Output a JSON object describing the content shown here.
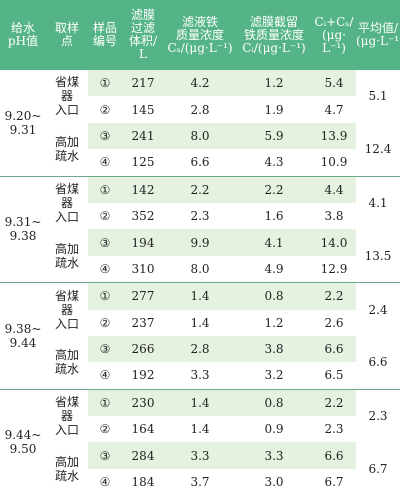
{
  "header": [
    [
      "给水",
      "pH值"
    ],
    [
      "取样",
      "点"
    ],
    [
      "样品",
      "编号"
    ],
    [
      "滤膜",
      "过滤",
      "体积/",
      "L"
    ],
    [
      "滤液铁",
      "质量浓度",
      "Cₛ/(μg·L⁻¹)"
    ],
    [
      "滤膜截留",
      "铁质量浓度",
      "Cᵢ/(μg·L⁻¹)"
    ],
    [
      "Cᵢ+Cₛ/",
      "(μg·",
      "L⁻¹)"
    ],
    [
      "平均值/",
      "(μg·L⁻¹)"
    ]
  ],
  "groups": [
    {
      "ph": [
        "9.20~",
        "9.31"
      ],
      "points": [
        {
          "name": [
            "省煤",
            "器",
            "入口"
          ],
          "rows": [
            [
              "①",
              "217",
              "4.2",
              "1.2",
              "5.4"
            ],
            [
              "②",
              "145",
              "2.8",
              "1.9",
              "4.7"
            ]
          ],
          "avg": "5.1"
        },
        {
          "name": [
            "高加",
            "疏水"
          ],
          "rows": [
            [
              "③",
              "241",
              "8.0",
              "5.9",
              "13.9"
            ],
            [
              "④",
              "125",
              "6.6",
              "4.3",
              "10.9"
            ]
          ],
          "avg": "12.4"
        }
      ]
    },
    {
      "ph": [
        "9.31~",
        "9.38"
      ],
      "points": [
        {
          "name": [
            "省煤",
            "器",
            "入口"
          ],
          "rows": [
            [
              "①",
              "142",
              "2.2",
              "2.2",
              "4.4"
            ],
            [
              "②",
              "352",
              "2.3",
              "1.6",
              "3.8"
            ]
          ],
          "avg": "4.1"
        },
        {
          "name": [
            "高加",
            "疏水"
          ],
          "rows": [
            [
              "③",
              "194",
              "9.9",
              "4.1",
              "14.0"
            ],
            [
              "④",
              "310",
              "8.0",
              "4.9",
              "12.9"
            ]
          ],
          "avg": "13.5"
        }
      ]
    },
    {
      "ph": [
        "9.38~",
        "9.44"
      ],
      "points": [
        {
          "name": [
            "省煤",
            "器",
            "入口"
          ],
          "rows": [
            [
              "①",
              "277",
              "1.4",
              "0.8",
              "2.2"
            ],
            [
              "②",
              "237",
              "1.4",
              "1.2",
              "2.6"
            ]
          ],
          "avg": "2.4"
        },
        {
          "name": [
            "高加",
            "疏水"
          ],
          "rows": [
            [
              "③",
              "266",
              "2.8",
              "3.8",
              "6.6"
            ],
            [
              "④",
              "192",
              "3.3",
              "3.2",
              "6.5"
            ]
          ],
          "avg": "6.6"
        }
      ]
    },
    {
      "ph": [
        "9.44~",
        "9.50"
      ],
      "points": [
        {
          "name": [
            "省煤",
            "器",
            "入口"
          ],
          "rows": [
            [
              "①",
              "230",
              "1.4",
              "0.8",
              "2.2"
            ],
            [
              "②",
              "164",
              "1.4",
              "0.9",
              "2.3"
            ]
          ],
          "avg": "2.3"
        },
        {
          "name": [
            "高加",
            "疏水"
          ],
          "rows": [
            [
              "③",
              "284",
              "3.3",
              "3.3",
              "6.6"
            ],
            [
              "④",
              "184",
              "3.7",
              "3.0",
              "6.7"
            ]
          ],
          "avg": "6.7"
        }
      ]
    }
  ]
}
